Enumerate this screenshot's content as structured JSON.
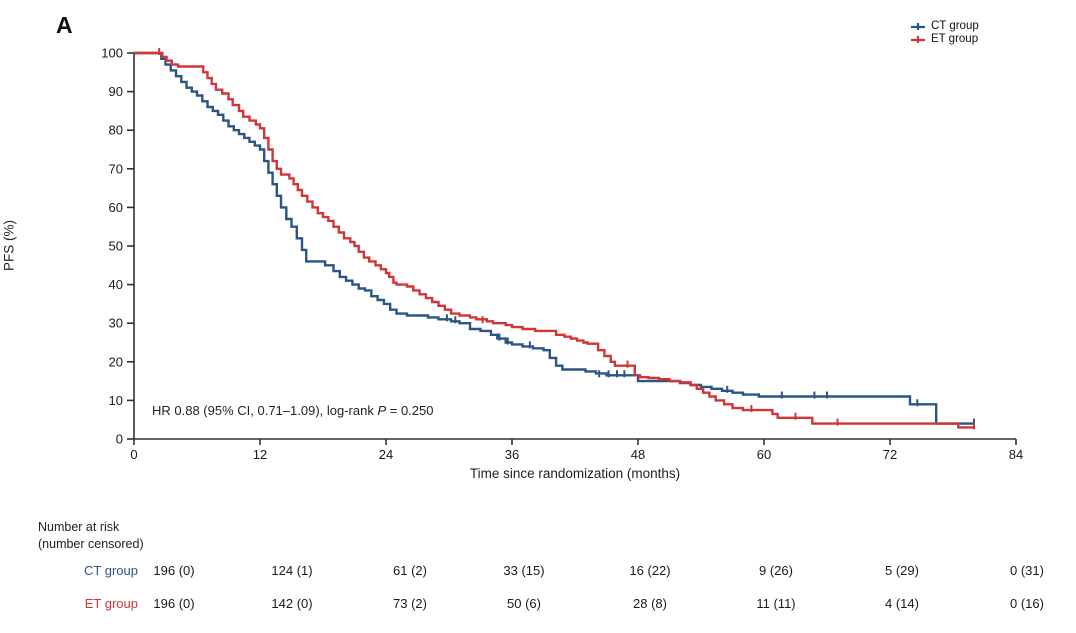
{
  "panel_label": "A",
  "legend": {
    "items": [
      {
        "label": "CT group",
        "color": "#2b5587",
        "marker": "censored-line-icon"
      },
      {
        "label": "ET group",
        "color": "#d03638",
        "marker": "censored-line-icon"
      }
    ]
  },
  "annotation": {
    "prefix": "HR 0.88 (95% CI, 0.71–1.09), log-rank ",
    "italic": "P",
    "suffix": " = 0.250"
  },
  "chart_data": {
    "type": "line",
    "subtype": "kaplan-meier-step",
    "title": "",
    "xlabel": "Time since randomization (months)",
    "ylabel": "PFS (%)",
    "xlim": [
      0,
      84
    ],
    "ylim": [
      0,
      100
    ],
    "x_ticks": [
      0,
      12,
      24,
      36,
      48,
      60,
      72,
      84
    ],
    "y_ticks": [
      0,
      10,
      20,
      30,
      40,
      50,
      60,
      70,
      80,
      90,
      100
    ],
    "grid": false,
    "legend_position": "top-right",
    "axis_color": "#333333",
    "series": [
      {
        "name": "CT group",
        "color": "#2b5587",
        "points": [
          [
            0,
            100
          ],
          [
            2.2,
            100
          ],
          [
            2.6,
            98.5
          ],
          [
            3,
            97
          ],
          [
            3.5,
            95.5
          ],
          [
            4,
            94
          ],
          [
            4.5,
            92.5
          ],
          [
            5,
            91
          ],
          [
            5.5,
            90
          ],
          [
            6,
            89
          ],
          [
            6.5,
            87.5
          ],
          [
            7,
            86
          ],
          [
            7.5,
            85
          ],
          [
            8,
            84
          ],
          [
            8.5,
            82.5
          ],
          [
            9,
            81
          ],
          [
            9.5,
            80
          ],
          [
            10,
            79
          ],
          [
            10.5,
            78
          ],
          [
            11,
            77
          ],
          [
            11.5,
            76
          ],
          [
            12,
            75
          ],
          [
            12.4,
            72
          ],
          [
            12.8,
            69
          ],
          [
            13.2,
            66
          ],
          [
            13.6,
            63
          ],
          [
            14,
            60
          ],
          [
            14.5,
            57
          ],
          [
            15,
            55
          ],
          [
            15.5,
            52
          ],
          [
            16,
            49
          ],
          [
            16.4,
            46
          ],
          [
            17.6,
            46
          ],
          [
            18.2,
            45
          ],
          [
            19,
            43.5
          ],
          [
            19.6,
            42
          ],
          [
            20.2,
            41
          ],
          [
            20.8,
            40
          ],
          [
            21.4,
            39
          ],
          [
            22,
            38.5
          ],
          [
            22.6,
            37
          ],
          [
            23.2,
            36
          ],
          [
            23.8,
            35
          ],
          [
            24.4,
            33.5
          ],
          [
            25,
            32.5
          ],
          [
            26,
            32
          ],
          [
            28,
            31.5
          ],
          [
            29,
            31
          ],
          [
            30.2,
            30.5
          ],
          [
            31,
            30
          ],
          [
            32,
            28.5
          ],
          [
            33,
            28
          ],
          [
            34,
            27
          ],
          [
            34.6,
            26
          ],
          [
            35.4,
            25
          ],
          [
            36,
            24.5
          ],
          [
            37,
            24
          ],
          [
            38,
            23.5
          ],
          [
            39,
            23
          ],
          [
            39.6,
            21
          ],
          [
            40.2,
            19
          ],
          [
            40.8,
            18
          ],
          [
            43,
            17.5
          ],
          [
            44,
            17
          ],
          [
            45,
            16.5
          ],
          [
            47.6,
            16.5
          ],
          [
            48,
            15
          ],
          [
            52,
            14.5
          ],
          [
            53,
            14
          ],
          [
            54,
            13.5
          ],
          [
            55,
            13
          ],
          [
            56,
            12.5
          ],
          [
            57,
            12
          ],
          [
            58,
            11.5
          ],
          [
            59.5,
            11
          ],
          [
            73.5,
            11
          ],
          [
            73.9,
            9
          ],
          [
            76,
            9
          ],
          [
            76.4,
            4
          ],
          [
            80,
            4
          ]
        ],
        "censor_marks": [
          [
            29.8,
            31
          ],
          [
            30.6,
            30.5
          ],
          [
            34.8,
            26
          ],
          [
            35.6,
            25
          ],
          [
            37.7,
            24
          ],
          [
            44.3,
            16.5
          ],
          [
            45.2,
            16.5
          ],
          [
            46,
            16.5
          ],
          [
            46.7,
            16.5
          ],
          [
            56.5,
            12.5
          ],
          [
            61.7,
            11
          ],
          [
            64.8,
            11
          ],
          [
            66,
            11
          ],
          [
            74.6,
            9
          ],
          [
            80,
            4
          ]
        ]
      },
      {
        "name": "ET group",
        "color": "#d03638",
        "points": [
          [
            0,
            100
          ],
          [
            2.3,
            100
          ],
          [
            2.7,
            99
          ],
          [
            3.1,
            98
          ],
          [
            3.6,
            97
          ],
          [
            4.2,
            96.5
          ],
          [
            6.2,
            96.5
          ],
          [
            6.6,
            95
          ],
          [
            7,
            93.5
          ],
          [
            7.4,
            92
          ],
          [
            7.8,
            90.5
          ],
          [
            8.4,
            89.5
          ],
          [
            9,
            88
          ],
          [
            9.4,
            86.5
          ],
          [
            10,
            85
          ],
          [
            10.4,
            83.5
          ],
          [
            11,
            82.5
          ],
          [
            11.6,
            81.5
          ],
          [
            12,
            80.5
          ],
          [
            12.4,
            78
          ],
          [
            12.8,
            75
          ],
          [
            13.2,
            72
          ],
          [
            13.6,
            70
          ],
          [
            14,
            68.5
          ],
          [
            14.8,
            67.5
          ],
          [
            15.2,
            66
          ],
          [
            15.6,
            64.5
          ],
          [
            16,
            63
          ],
          [
            16.5,
            61.5
          ],
          [
            17,
            60
          ],
          [
            17.5,
            58.5
          ],
          [
            18,
            57.5
          ],
          [
            18.5,
            56.5
          ],
          [
            19,
            55
          ],
          [
            19.5,
            53.5
          ],
          [
            20,
            52
          ],
          [
            20.6,
            51
          ],
          [
            21,
            50
          ],
          [
            21.4,
            48.5
          ],
          [
            21.9,
            47
          ],
          [
            22.4,
            46
          ],
          [
            23,
            45
          ],
          [
            23.5,
            44
          ],
          [
            24,
            43
          ],
          [
            24.3,
            42
          ],
          [
            24.7,
            40.5
          ],
          [
            25,
            40
          ],
          [
            26,
            39.5
          ],
          [
            26.6,
            38.5
          ],
          [
            27.2,
            37.5
          ],
          [
            27.8,
            36.5
          ],
          [
            28.4,
            35.5
          ],
          [
            29,
            34.5
          ],
          [
            29.6,
            33.5
          ],
          [
            30.2,
            32.5
          ],
          [
            31,
            32
          ],
          [
            32,
            31.5
          ],
          [
            32.6,
            31
          ],
          [
            33.6,
            30.5
          ],
          [
            34.2,
            30
          ],
          [
            35.4,
            29.5
          ],
          [
            36,
            29
          ],
          [
            37,
            28.5
          ],
          [
            38.2,
            28
          ],
          [
            40.2,
            27
          ],
          [
            41,
            26.5
          ],
          [
            41.6,
            26
          ],
          [
            42.2,
            25.5
          ],
          [
            42.8,
            25
          ],
          [
            43.2,
            24.7
          ],
          [
            44.2,
            23
          ],
          [
            44.8,
            21.5
          ],
          [
            45.4,
            20
          ],
          [
            45.8,
            19
          ],
          [
            47.3,
            19
          ],
          [
            47.7,
            16.5
          ],
          [
            48.2,
            16
          ],
          [
            49,
            15.8
          ],
          [
            50,
            15.5
          ],
          [
            51,
            15
          ],
          [
            52,
            14.7
          ],
          [
            53,
            14
          ],
          [
            53.6,
            13
          ],
          [
            54.2,
            12
          ],
          [
            54.8,
            11
          ],
          [
            55.4,
            10
          ],
          [
            56.2,
            9
          ],
          [
            57,
            8
          ],
          [
            58,
            7.5
          ],
          [
            60.3,
            7.5
          ],
          [
            60.8,
            6.5
          ],
          [
            61.3,
            5.5
          ],
          [
            64.2,
            5.5
          ],
          [
            64.6,
            4
          ],
          [
            78,
            4
          ],
          [
            78.5,
            3
          ],
          [
            80,
            3
          ]
        ],
        "censor_marks": [
          [
            2.4,
            100
          ],
          [
            33.2,
            30.5
          ],
          [
            47,
            19
          ],
          [
            58.8,
            7.5
          ],
          [
            63,
            5.5
          ],
          [
            67,
            4
          ],
          [
            80,
            3
          ]
        ]
      }
    ]
  },
  "risk_table": {
    "header_line1": "Number at risk",
    "header_line2": "(number censored)",
    "rows": [
      {
        "label": "CT group",
        "color": "#2b5587",
        "values": [
          "196 (0)",
          "124 (1)",
          "61 (2)",
          "33 (15)",
          "16 (22)",
          "9 (26)",
          "5 (29)",
          "0 (31)"
        ]
      },
      {
        "label": "ET group",
        "color": "#d03638",
        "values": [
          "196 (0)",
          "142 (0)",
          "73 (2)",
          "50 (6)",
          "28 (8)",
          "11 (11)",
          "4 (14)",
          "0 (16)"
        ]
      }
    ]
  }
}
